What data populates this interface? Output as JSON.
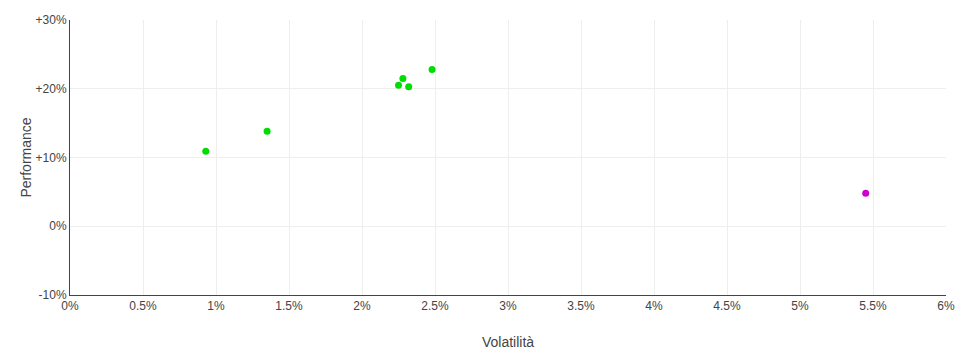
{
  "chart_data": {
    "type": "scatter",
    "xlabel": "Volatilità",
    "ylabel": "Performance",
    "series": [
      {
        "color": "#00dd00",
        "x": [
          0.0093,
          0.0135,
          0.0225,
          0.0228,
          0.0232,
          0.0248
        ],
        "values": [
          0.109,
          0.138,
          0.205,
          0.215,
          0.203,
          0.228
        ]
      },
      {
        "color": "#cc00cc",
        "x": [
          0.0545
        ],
        "values": [
          0.048
        ]
      }
    ],
    "xlim": [
      0.0,
      0.06
    ],
    "ylim": [
      -0.1,
      0.3
    ],
    "xticks": [
      {
        "value": 0.0,
        "label": "0%"
      },
      {
        "value": 0.005,
        "label": "0.5%"
      },
      {
        "value": 0.01,
        "label": "1%"
      },
      {
        "value": 0.015,
        "label": "1.5%"
      },
      {
        "value": 0.02,
        "label": "2%"
      },
      {
        "value": 0.025,
        "label": "2.5%"
      },
      {
        "value": 0.03,
        "label": "3%"
      },
      {
        "value": 0.035,
        "label": "3.5%"
      },
      {
        "value": 0.04,
        "label": "4%"
      },
      {
        "value": 0.045,
        "label": "4.5%"
      },
      {
        "value": 0.05,
        "label": "5%"
      },
      {
        "value": 0.055,
        "label": "5.5%"
      },
      {
        "value": 0.06,
        "label": "6%"
      }
    ],
    "yticks": [
      {
        "value": -0.1,
        "label": "-10%"
      },
      {
        "value": 0.0,
        "label": "0%"
      },
      {
        "value": 0.1,
        "label": "+10%"
      },
      {
        "value": 0.2,
        "label": "+20%"
      },
      {
        "value": 0.3,
        "label": "+30%"
      }
    ],
    "grid": true
  }
}
